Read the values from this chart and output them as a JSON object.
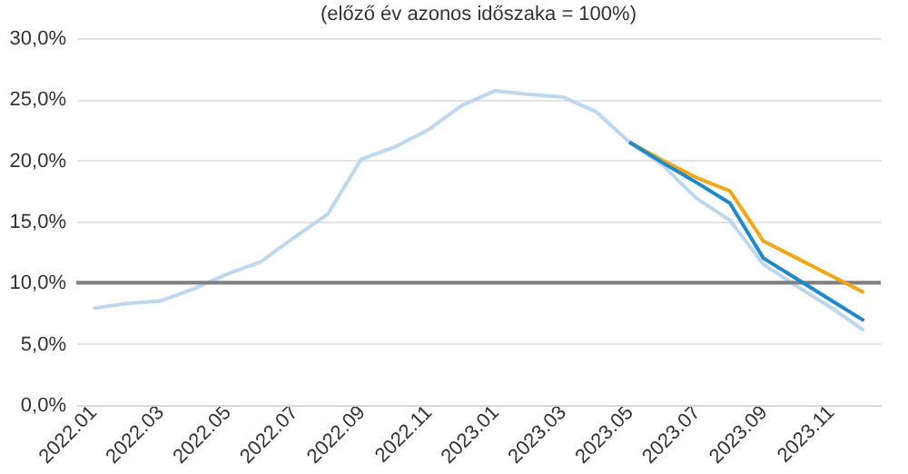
{
  "chart_data": {
    "type": "line",
    "subtitle": "(előző év azonos időszaka = 100%)",
    "categories": [
      "2022.01",
      null,
      "2022.03",
      null,
      "2022.05",
      null,
      "2022.07",
      null,
      "2022.09",
      null,
      "2022.11",
      null,
      "2023.01",
      null,
      "2023.03",
      null,
      "2023.05",
      null,
      "2023.07",
      null,
      "2023.09",
      null,
      "2023.11",
      null
    ],
    "series": [
      {
        "color": "#bdd7ee",
        "values": [
          7.9,
          8.3,
          8.5,
          9.5,
          10.7,
          11.7,
          13.7,
          15.6,
          20.1,
          21.1,
          22.5,
          24.5,
          25.7,
          25.4,
          25.2,
          24.0,
          21.5,
          19.6,
          16.9,
          15.1,
          11.5,
          9.7,
          8.0,
          6.1
        ]
      },
      {
        "color": "#f0a818",
        "values": [
          null,
          null,
          null,
          null,
          null,
          null,
          null,
          null,
          null,
          null,
          null,
          null,
          null,
          null,
          null,
          null,
          21.5,
          20.0,
          18.6,
          17.5,
          13.4,
          12.0,
          10.6,
          9.2
        ]
      },
      {
        "color": "#1f8acb",
        "values": [
          null,
          null,
          null,
          null,
          null,
          null,
          null,
          null,
          null,
          null,
          null,
          null,
          null,
          null,
          null,
          null,
          21.5,
          19.8,
          18.2,
          16.5,
          12.0,
          10.3,
          8.6,
          6.9
        ]
      }
    ],
    "ylim": [
      0,
      30
    ],
    "yticks": [
      {
        "value": 0,
        "label": "0,0%"
      },
      {
        "value": 5,
        "label": "5,0%"
      },
      {
        "value": 10,
        "label": "10,0%"
      },
      {
        "value": 15,
        "label": "15,0%"
      },
      {
        "value": 20,
        "label": "20,0%"
      },
      {
        "value": 25,
        "label": "25,0%"
      },
      {
        "value": 30,
        "label": "30,0%"
      }
    ],
    "ref_lines": [
      {
        "axis": "y",
        "value": 10,
        "color": "#808080"
      }
    ],
    "grid": "y"
  }
}
